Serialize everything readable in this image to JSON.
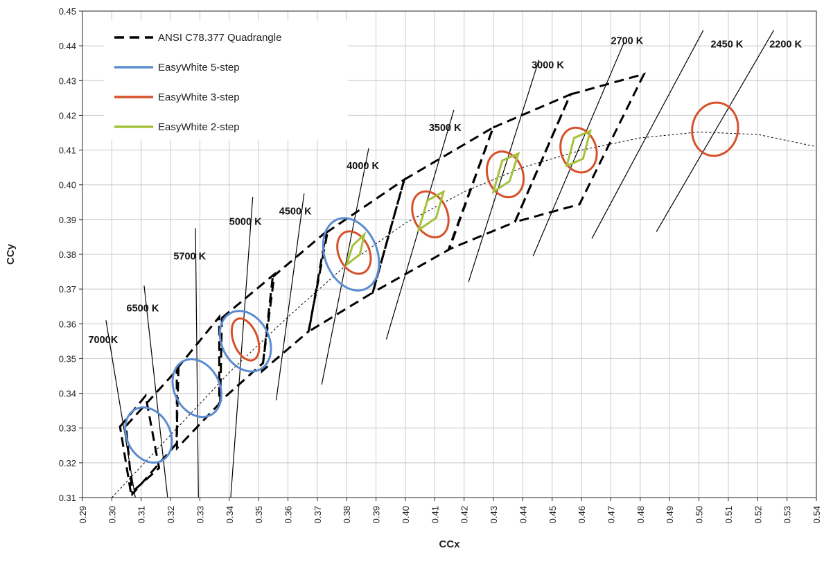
{
  "chart_data": {
    "type": "scatter",
    "title": "",
    "xlabel": "CCx",
    "ylabel": "CCy",
    "xlim": [
      0.29,
      0.54
    ],
    "ylim": [
      0.31,
      0.45
    ],
    "xticks": [
      "0.29",
      "0.30",
      "0.31",
      "0.32",
      "0.33",
      "0.34",
      "0.35",
      "0.36",
      "0.37",
      "0.38",
      "0.39",
      "0.40",
      "0.41",
      "0.42",
      "0.43",
      "0.44",
      "0.45",
      "0.46",
      "0.47",
      "0.48",
      "0.49",
      "0.50",
      "0.51",
      "0.52",
      "0.53",
      "0.54"
    ],
    "yticks": [
      "0.31",
      "0.32",
      "0.33",
      "0.34",
      "0.35",
      "0.36",
      "0.37",
      "0.38",
      "0.39",
      "0.40",
      "0.41",
      "0.42",
      "0.43",
      "0.44",
      "0.45"
    ],
    "grid": true,
    "legend_position": "top-left",
    "legend": [
      {
        "label": "ANSI C78.377 Quadrangle",
        "color": "#000000",
        "style": "dashed"
      },
      {
        "label": "EasyWhite 5-step",
        "color": "#5b8bd0",
        "style": "solid"
      },
      {
        "label": "EasyWhite 3-step",
        "color": "#d6502a",
        "style": "solid"
      },
      {
        "label": "EasyWhite 2-step",
        "color": "#a3c23a",
        "style": "solid"
      }
    ],
    "colors": {
      "quadrangle": "#000000",
      "five_step": "#5b8bd0",
      "three_step": "#d6502a",
      "two_step": "#a3c23a",
      "grid": "#c8c8c8"
    },
    "planckian_locus": [
      [
        0.3,
        0.31
      ],
      [
        0.32,
        0.328
      ],
      [
        0.34,
        0.346
      ],
      [
        0.36,
        0.362
      ],
      [
        0.38,
        0.377
      ],
      [
        0.4,
        0.389
      ],
      [
        0.42,
        0.398
      ],
      [
        0.44,
        0.405
      ],
      [
        0.46,
        0.41
      ],
      [
        0.48,
        0.4135
      ],
      [
        0.5,
        0.4152
      ],
      [
        0.52,
        0.4145
      ],
      [
        0.54,
        0.411
      ]
    ],
    "cct_labels": [
      {
        "text": "7000K",
        "x": 0.292,
        "y": 0.3545
      },
      {
        "text": "6500 K",
        "x": 0.305,
        "y": 0.3635
      },
      {
        "text": "5700 K",
        "x": 0.321,
        "y": 0.3785
      },
      {
        "text": "5000 K",
        "x": 0.34,
        "y": 0.3885
      },
      {
        "text": "4500 K",
        "x": 0.357,
        "y": 0.3915
      },
      {
        "text": "4000 K",
        "x": 0.38,
        "y": 0.4045
      },
      {
        "text": "3500 K",
        "x": 0.408,
        "y": 0.4155
      },
      {
        "text": "3000 K",
        "x": 0.443,
        "y": 0.4335
      },
      {
        "text": "2700 K",
        "x": 0.47,
        "y": 0.4405
      },
      {
        "text": "2450 K",
        "x": 0.504,
        "y": 0.4395
      },
      {
        "text": "2200 K",
        "x": 0.524,
        "y": 0.4395
      }
    ],
    "isotherm_lines": [
      {
        "cct": "7000K",
        "from": [
          0.298,
          0.361
        ],
        "to": [
          0.308,
          0.31
        ]
      },
      {
        "cct": "6500 K",
        "from": [
          0.311,
          0.371
        ],
        "to": [
          0.319,
          0.31
        ]
      },
      {
        "cct": "5700 K",
        "from": [
          0.3285,
          0.3875
        ],
        "to": [
          0.3295,
          0.31
        ]
      },
      {
        "cct": "5000 K",
        "from": [
          0.348,
          0.3965
        ],
        "to": [
          0.3405,
          0.31
        ]
      },
      {
        "cct": "4500 K",
        "from": [
          0.3655,
          0.3975
        ],
        "to": [
          0.356,
          0.338
        ]
      },
      {
        "cct": "4000 K",
        "from": [
          0.3875,
          0.4105
        ],
        "to": [
          0.3715,
          0.3425
        ]
      },
      {
        "cct": "3500 K",
        "from": [
          0.4165,
          0.4215
        ],
        "to": [
          0.3935,
          0.3555
        ]
      },
      {
        "cct": "3000 K",
        "from": [
          0.4455,
          0.436
        ],
        "to": [
          0.4215,
          0.372
        ]
      },
      {
        "cct": "2700 K",
        "from": [
          0.4745,
          0.441
        ],
        "to": [
          0.4435,
          0.3795
        ]
      },
      {
        "cct": "2450 K",
        "from": [
          0.5015,
          0.4445
        ],
        "to": [
          0.4635,
          0.3845
        ]
      },
      {
        "cct": "2200 K",
        "from": [
          0.5255,
          0.4445
        ],
        "to": [
          0.4855,
          0.3865
        ]
      }
    ],
    "quadrangles": [
      {
        "cct": "7000K",
        "points": [
          [
            0.3028,
            0.3304
          ],
          [
            0.3115,
            0.3393
          ],
          [
            0.3161,
            0.3185
          ],
          [
            0.3065,
            0.3113
          ]
        ]
      },
      {
        "cct": "6500 K",
        "points": [
          [
            0.3048,
            0.3306
          ],
          [
            0.3227,
            0.3472
          ],
          [
            0.322,
            0.3255
          ],
          [
            0.307,
            0.311
          ]
        ]
      },
      {
        "cct": "5700 K",
        "points": [
          [
            0.3221,
            0.347
          ],
          [
            0.3366,
            0.362
          ],
          [
            0.3366,
            0.337
          ],
          [
            0.3222,
            0.3242
          ]
        ]
      },
      {
        "cct": "5000 K",
        "points": [
          [
            0.3375,
            0.3617
          ],
          [
            0.3554,
            0.3743
          ],
          [
            0.3515,
            0.3487
          ],
          [
            0.3369,
            0.3377
          ]
        ]
      },
      {
        "cct": "4500 K",
        "points": [
          [
            0.3548,
            0.3735
          ],
          [
            0.3736,
            0.3869
          ],
          [
            0.367,
            0.3578
          ],
          [
            0.3512,
            0.3464
          ]
        ]
      },
      {
        "cct": "4000 K",
        "points": [
          [
            0.373,
            0.3862
          ],
          [
            0.3996,
            0.4015
          ],
          [
            0.3889,
            0.369
          ],
          [
            0.3671,
            0.3578
          ]
        ]
      },
      {
        "cct": "3500 K",
        "points": [
          [
            0.3996,
            0.4015
          ],
          [
            0.4299,
            0.4165
          ],
          [
            0.4149,
            0.3814
          ],
          [
            0.3889,
            0.369
          ]
        ]
      },
      {
        "cct": "3000 K",
        "points": [
          [
            0.4299,
            0.4165
          ],
          [
            0.4562,
            0.426
          ],
          [
            0.4373,
            0.3893
          ],
          [
            0.4147,
            0.3814
          ]
        ]
      },
      {
        "cct": "2700 K",
        "points": [
          [
            0.4562,
            0.426
          ],
          [
            0.4813,
            0.4319
          ],
          [
            0.4593,
            0.3944
          ],
          [
            0.4373,
            0.3893
          ]
        ]
      }
    ],
    "series": [
      {
        "name": "EasyWhite 5-step",
        "ellipses": [
          {
            "cx": 0.3125,
            "cy": 0.328,
            "a": 0.007,
            "b": 0.0088,
            "angle": 45
          },
          {
            "cx": 0.329,
            "cy": 0.3415,
            "a": 0.0073,
            "b": 0.0092,
            "angle": 45
          },
          {
            "cx": 0.3455,
            "cy": 0.355,
            "a": 0.0076,
            "b": 0.0097,
            "angle": 45
          },
          {
            "cx": 0.3815,
            "cy": 0.38,
            "a": 0.0086,
            "b": 0.0112,
            "angle": 35
          }
        ]
      },
      {
        "name": "EasyWhite 3-step",
        "ellipses": [
          {
            "cx": 0.3455,
            "cy": 0.3555,
            "a": 0.004,
            "b": 0.0065,
            "angle": 28
          },
          {
            "cx": 0.3825,
            "cy": 0.3805,
            "a": 0.005,
            "b": 0.0067,
            "angle": 38
          },
          {
            "cx": 0.4085,
            "cy": 0.3915,
            "a": 0.0055,
            "b": 0.0072,
            "angle": 38
          },
          {
            "cx": 0.434,
            "cy": 0.403,
            "a": 0.0058,
            "b": 0.007,
            "angle": 38
          },
          {
            "cx": 0.459,
            "cy": 0.41,
            "a": 0.0058,
            "b": 0.0068,
            "angle": 38
          },
          {
            "cx": 0.5055,
            "cy": 0.416,
            "a": 0.008,
            "b": 0.0075,
            "angle": 35
          }
        ]
      },
      {
        "name": "EasyWhite 2-step",
        "quads": [
          {
            "points": [
              [
                0.38,
                0.377
              ],
              [
                0.382,
                0.3825
              ],
              [
                0.386,
                0.3857
              ],
              [
                0.3845,
                0.38
              ]
            ]
          },
          {
            "points": [
              [
                0.4045,
                0.387
              ],
              [
                0.4075,
                0.3955
              ],
              [
                0.413,
                0.398
              ],
              [
                0.4105,
                0.3905
              ]
            ]
          },
          {
            "points": [
              [
                0.43,
                0.398
              ],
              [
                0.433,
                0.407
              ],
              [
                0.4385,
                0.409
              ],
              [
                0.4355,
                0.401
              ]
            ]
          },
          {
            "points": [
              [
                0.455,
                0.4055
              ],
              [
                0.4575,
                0.4135
              ],
              [
                0.463,
                0.4155
              ],
              [
                0.4605,
                0.4075
              ]
            ]
          }
        ]
      }
    ]
  }
}
